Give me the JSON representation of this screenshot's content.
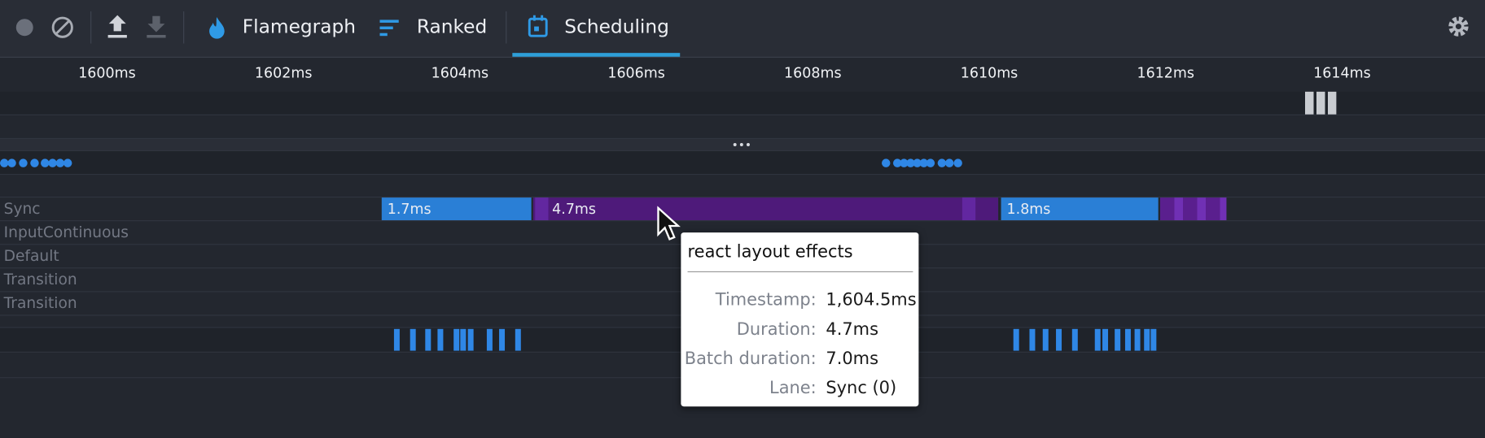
{
  "toolbar": {
    "tabs": [
      "Flamegraph",
      "Ranked",
      "Scheduling"
    ]
  },
  "timeline": {
    "ticks": [
      "1600ms",
      "1602ms",
      "1604ms",
      "1606ms",
      "1608ms",
      "1610ms",
      "1612ms",
      "1614ms"
    ],
    "lanes": [
      "Sync",
      "InputContinuous",
      "Default",
      "Transition",
      "Transition"
    ],
    "sync_labels": [
      "1.7ms",
      "4.7ms",
      "1.8ms"
    ]
  },
  "tooltip": {
    "title": "react layout effects",
    "rows": [
      [
        "Timestamp:",
        "1,604.5ms"
      ],
      [
        "Duration:",
        "4.7ms"
      ],
      [
        "Batch duration:",
        "7.0ms"
      ],
      [
        "Lane:",
        "Sync (0)"
      ]
    ]
  }
}
